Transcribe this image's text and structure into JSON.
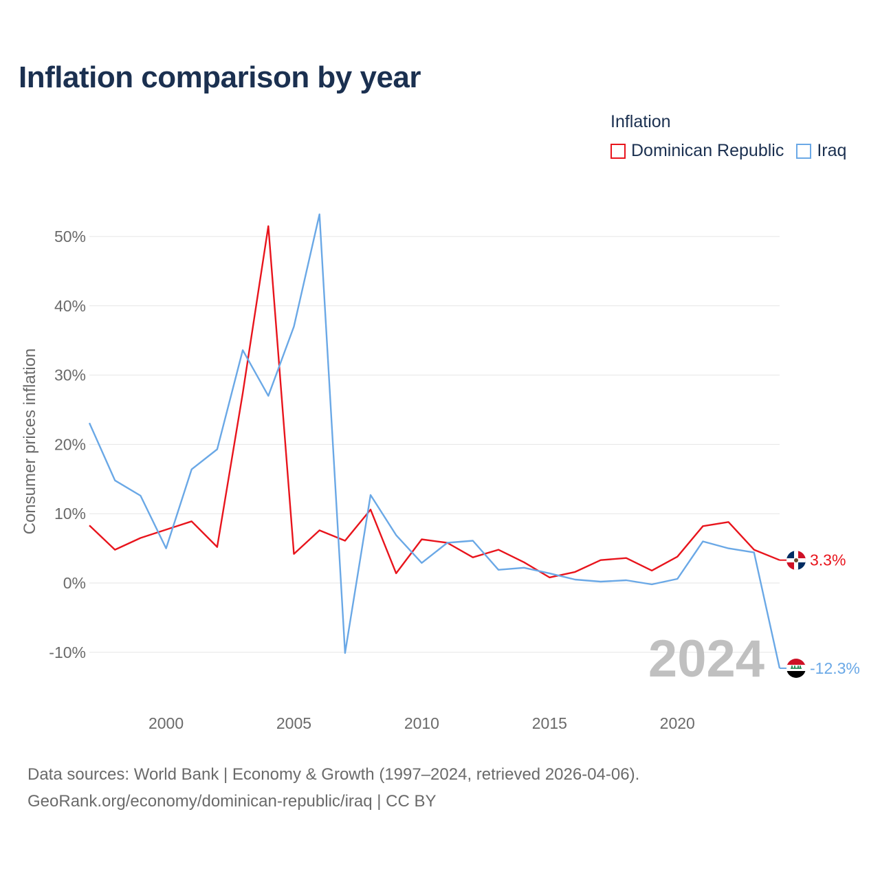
{
  "title": "Inflation comparison by year",
  "legend": {
    "title": "Inflation",
    "items": [
      {
        "name": "Dominican Republic",
        "color": "#e8141c"
      },
      {
        "name": "Iraq",
        "color": "#6aa8e6"
      }
    ]
  },
  "sources": {
    "line1": "Data sources: World Bank | Economy & Growth (1997–2024, retrieved 2026-04-06).",
    "line2": "GeoRank.org/economy/dominican-republic/iraq | CC BY"
  },
  "chart_data": {
    "type": "line",
    "title": "Inflation comparison by year",
    "xlabel": "",
    "ylabel": "Consumer prices inflation",
    "x": [
      1997,
      1998,
      1999,
      2000,
      2001,
      2002,
      2003,
      2004,
      2005,
      2006,
      2007,
      2008,
      2009,
      2010,
      2011,
      2012,
      2013,
      2014,
      2015,
      2016,
      2017,
      2018,
      2019,
      2020,
      2021,
      2022,
      2023,
      2024
    ],
    "xlim": [
      1997,
      2024
    ],
    "ylim": [
      -14,
      55
    ],
    "x_ticks": [
      2000,
      2005,
      2010,
      2015,
      2020
    ],
    "x_tick_labels": [
      "2000",
      "2005",
      "2010",
      "2015",
      "2020"
    ],
    "y_ticks": [
      -10,
      0,
      10,
      20,
      30,
      40,
      50
    ],
    "y_tick_labels": [
      "-10%",
      "0%",
      "10%",
      "20%",
      "30%",
      "40%",
      "50%"
    ],
    "grid": true,
    "year_watermark": "2024",
    "series": [
      {
        "name": "Dominican Republic",
        "color": "#e8141c",
        "end_label": "3.3%",
        "values": [
          8.3,
          4.8,
          6.5,
          7.7,
          8.9,
          5.2,
          27.4,
          51.5,
          4.2,
          7.6,
          6.1,
          10.6,
          1.4,
          6.3,
          5.8,
          3.7,
          4.8,
          3.0,
          0.8,
          1.6,
          3.3,
          3.6,
          1.8,
          3.8,
          8.2,
          8.8,
          4.8,
          3.3
        ]
      },
      {
        "name": "Iraq",
        "color": "#6aa8e6",
        "end_label": "-12.3%",
        "values": [
          23.1,
          14.8,
          12.6,
          5.0,
          16.4,
          19.3,
          33.6,
          27.0,
          37.0,
          53.2,
          -10.1,
          12.7,
          6.9,
          2.9,
          5.8,
          6.1,
          1.9,
          2.2,
          1.4,
          0.5,
          0.2,
          0.4,
          -0.2,
          0.6,
          6.0,
          5.0,
          4.4,
          -12.3
        ]
      }
    ]
  }
}
